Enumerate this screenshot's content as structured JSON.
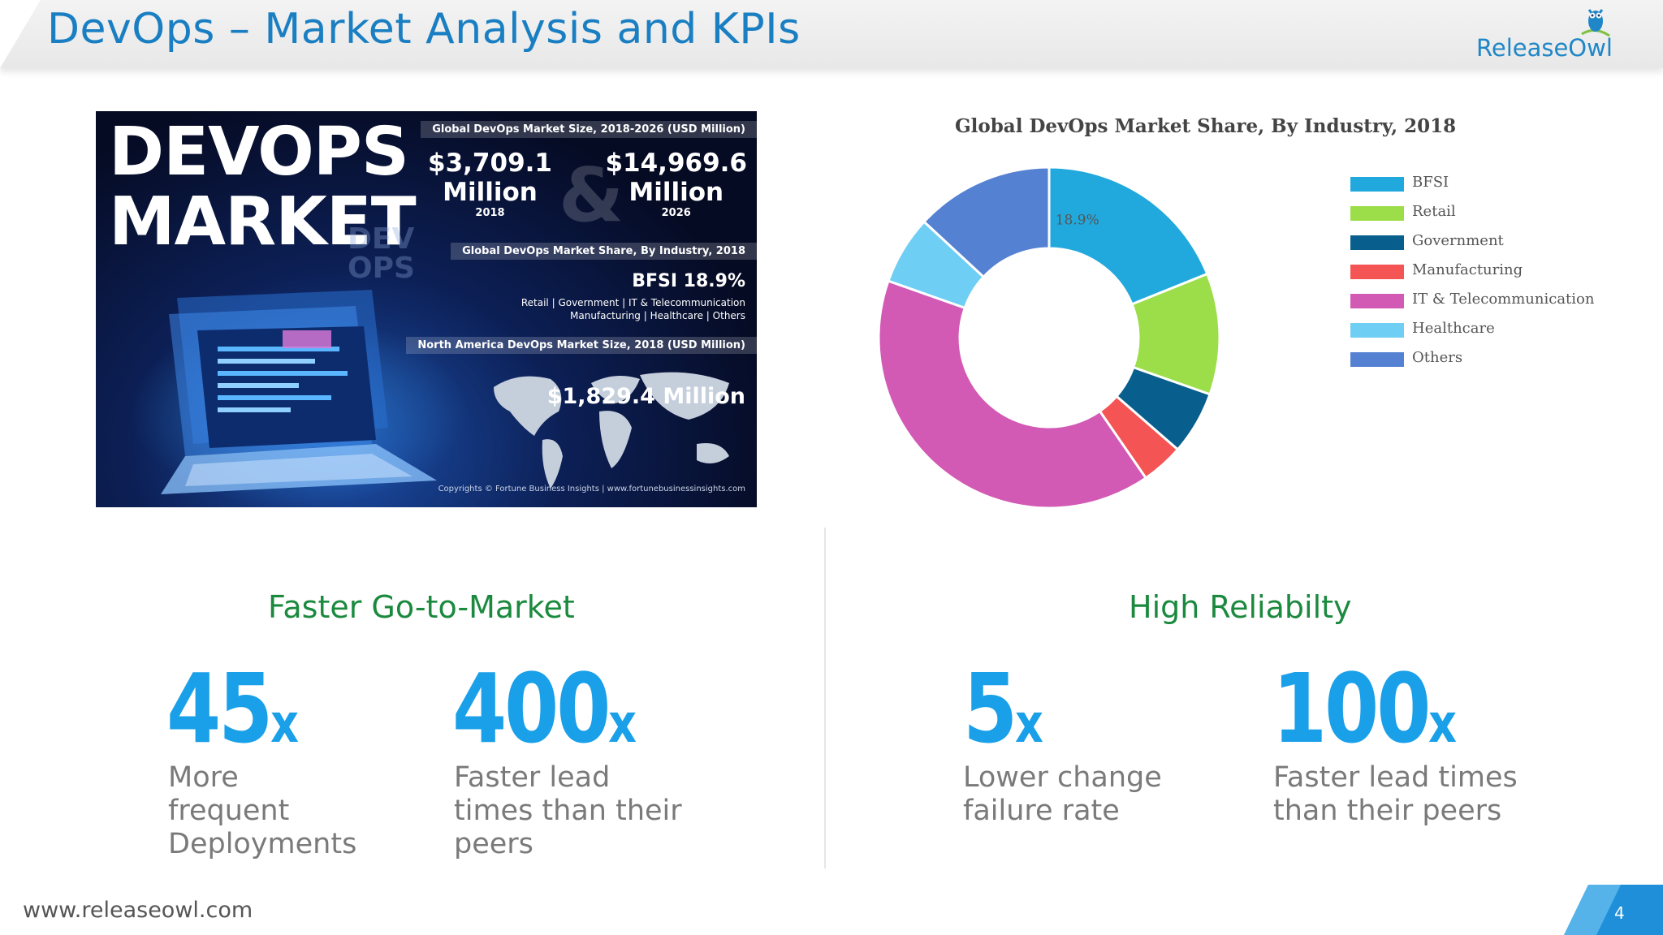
{
  "header": {
    "title": "DevOps – Market Analysis and KPIs",
    "logo_text": "ReleaseOwl"
  },
  "infographic": {
    "heading_line1": "DEVOPS",
    "heading_line2": "MARKET",
    "market_size_label": "Global DevOps Market Size, 2018-2026 (USD Million)",
    "value_2018": "$3,709.1",
    "value_2018_unit": "Million",
    "year_2018": "2018",
    "value_2026": "$14,969.6",
    "value_2026_unit": "Million",
    "year_2026": "2026",
    "share_label": "Global DevOps Market Share, By Industry, 2018",
    "bfsi_share": "BFSI 18.9%",
    "others_line1": "Retail | Government | IT & Telecommunication",
    "others_line2": "Manufacturing | Healthcare | Others",
    "na_label": "North America DevOps Market Size, 2018 (USD Million)",
    "na_value": "$1,829.4 Million",
    "copyright": "Copyrights © Fortune Business Insights | www.fortunebusinessinsights.com",
    "watermark_line1": "DEV",
    "watermark_line2": "OPS"
  },
  "chart_data": {
    "type": "pie",
    "title": "Global DevOps Market Share, By Industry, 2018",
    "donut": true,
    "legend_position": "right",
    "categories": [
      "BFSI",
      "Retail",
      "Government",
      "Manufacturing",
      "IT & Telecommunication",
      "Healthcare",
      "Others"
    ],
    "values": [
      18.9,
      11.5,
      6.0,
      4.0,
      40.0,
      6.5,
      13.1
    ],
    "colors": [
      "#21a9dd",
      "#9cde4a",
      "#085e8c",
      "#f45454",
      "#d259b4",
      "#6fcef3",
      "#5581d3"
    ],
    "data_labels": [
      "18.9%",
      "",
      "",
      "",
      "",
      "",
      ""
    ]
  },
  "kpis": {
    "left_title": "Faster Go-to-Market",
    "right_title": "High Reliabilty",
    "items": [
      {
        "number": "45",
        "suffix": "x",
        "desc": [
          "More",
          "frequent",
          "Deployments"
        ]
      },
      {
        "number": "400",
        "suffix": "x",
        "desc": [
          "Faster lead",
          "times than their",
          "peers"
        ]
      },
      {
        "number": "5",
        "suffix": "x",
        "desc": [
          "Lower change",
          "failure rate"
        ]
      },
      {
        "number": "100",
        "suffix": "x",
        "desc": [
          "Faster lead times",
          "than their peers"
        ]
      }
    ]
  },
  "footer": {
    "url": "www.releaseowl.com",
    "page_number": "4"
  }
}
